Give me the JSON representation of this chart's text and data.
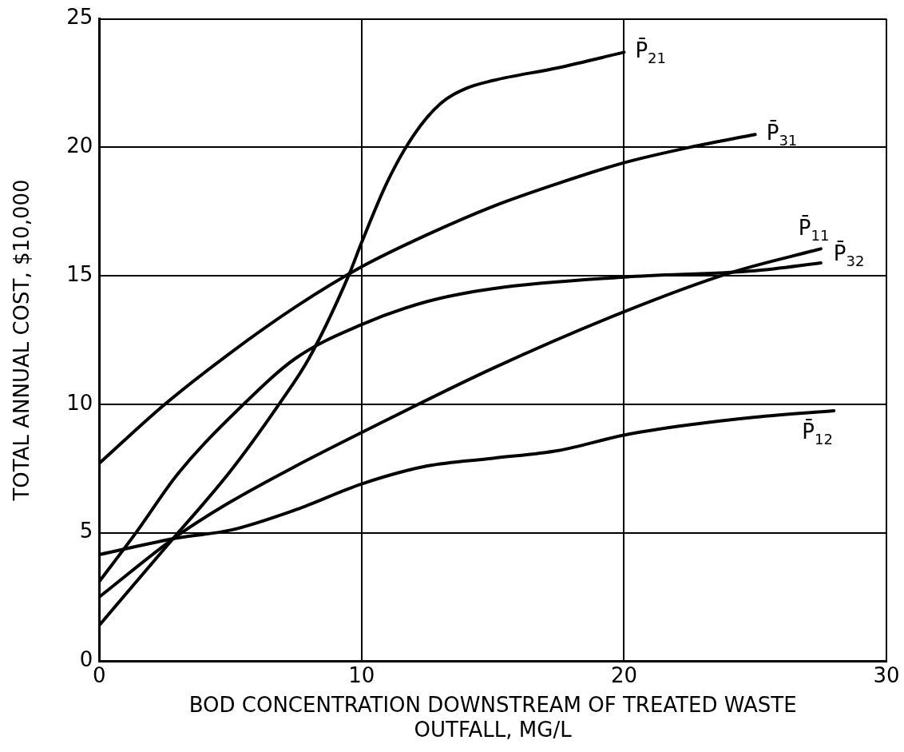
{
  "chart_data": {
    "type": "line",
    "xlabel": "BOD CONCENTRATION DOWNSTREAM OF TREATED WASTE OUTFALL, MG/L",
    "ylabel": "TOTAL ANNUAL COST, $10,000",
    "xlim": [
      0,
      30
    ],
    "xticks": [
      0,
      10,
      20,
      30
    ],
    "ylim": [
      0,
      25
    ],
    "yticks": [
      0,
      5,
      10,
      15,
      20,
      25
    ],
    "grid": true,
    "legend": false,
    "marker": "none",
    "line_style": "solid",
    "series": [
      {
        "name": "P̄$_{21}$",
        "color": "#000000",
        "x": [
          0,
          2.5,
          5,
          6.85,
          8,
          9.5,
          10,
          11,
          12,
          13,
          14,
          15,
          17.5,
          20
        ],
        "values": [
          1.4,
          4.4,
          7.4,
          10,
          11.8,
          15,
          16.3,
          18.7,
          20.5,
          21.7,
          22.3,
          22.6,
          23.1,
          23.7
        ]
      },
      {
        "name": "P̄$_{31}$",
        "color": "#000000",
        "x": [
          0,
          2.5,
          5,
          7.5,
          10,
          12.5,
          15,
          17.5,
          20,
          22.5,
          25
        ],
        "values": [
          7.7,
          10,
          12,
          13.8,
          15.35,
          16.6,
          17.7,
          18.6,
          19.4,
          20,
          20.5
        ]
      },
      {
        "name": "P̄$_{11}$",
        "color": "#000000",
        "x": [
          0,
          3,
          5,
          7.5,
          10,
          15,
          20,
          24,
          27.5
        ],
        "values": [
          2.5,
          4.9,
          6.2,
          7.6,
          8.9,
          11.4,
          13.6,
          15.1,
          16.05
        ]
      },
      {
        "name": "P̄$_{32}$",
        "color": "#000000",
        "x": [
          0,
          1.4,
          3,
          5.5,
          7.5,
          10,
          12.5,
          15,
          20,
          25,
          27.5
        ],
        "values": [
          3.1,
          5,
          7.3,
          10,
          11.8,
          13.1,
          14,
          14.5,
          14.95,
          15.2,
          15.5
        ]
      },
      {
        "name": "P̄$_{12}$",
        "color": "#000000",
        "x": [
          0,
          3,
          5,
          7.5,
          10,
          12.5,
          15,
          17.5,
          20,
          22.5,
          25,
          28
        ],
        "values": [
          4.15,
          4.8,
          5.1,
          5.9,
          6.9,
          7.6,
          7.9,
          8.2,
          8.8,
          9.2,
          9.5,
          9.75
        ]
      }
    ]
  }
}
